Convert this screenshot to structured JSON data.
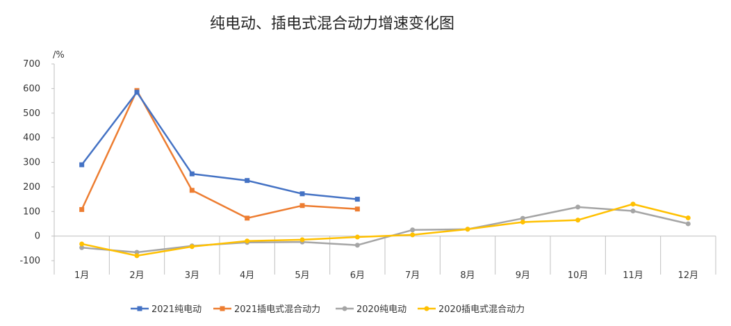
{
  "chart_data": {
    "type": "line",
    "title": "纯电动、插电式混合动力增速变化图",
    "ylabel": "/%",
    "xlabel": "",
    "categories": [
      "1月",
      "2月",
      "3月",
      "4月",
      "5月",
      "6月",
      "7月",
      "8月",
      "9月",
      "10月",
      "11月",
      "12月"
    ],
    "ylim": [
      -100,
      700
    ],
    "yticks": [
      -100,
      0,
      100,
      200,
      300,
      400,
      500,
      600,
      700
    ],
    "grid": false,
    "legend_position": "bottom",
    "series": [
      {
        "name": "2021纯电动",
        "color": "#4472C4",
        "marker": "square",
        "values": [
          290,
          585,
          253,
          226,
          172,
          150,
          null,
          null,
          null,
          null,
          null,
          null
        ]
      },
      {
        "name": "2021插电式混合动力",
        "color": "#ED7D31",
        "marker": "square",
        "values": [
          108,
          592,
          186,
          73,
          124,
          110,
          null,
          null,
          null,
          null,
          null,
          null
        ]
      },
      {
        "name": "2020纯电动",
        "color": "#A5A5A5",
        "marker": "circle",
        "values": [
          -47,
          -66,
          -40,
          -26,
          -24,
          -37,
          25,
          28,
          72,
          118,
          102,
          50
        ]
      },
      {
        "name": "2020插电式混合动力",
        "color": "#FFC000",
        "marker": "circle",
        "values": [
          -32,
          -80,
          -43,
          -20,
          -15,
          -4,
          5,
          28,
          57,
          65,
          130,
          74
        ]
      }
    ]
  }
}
